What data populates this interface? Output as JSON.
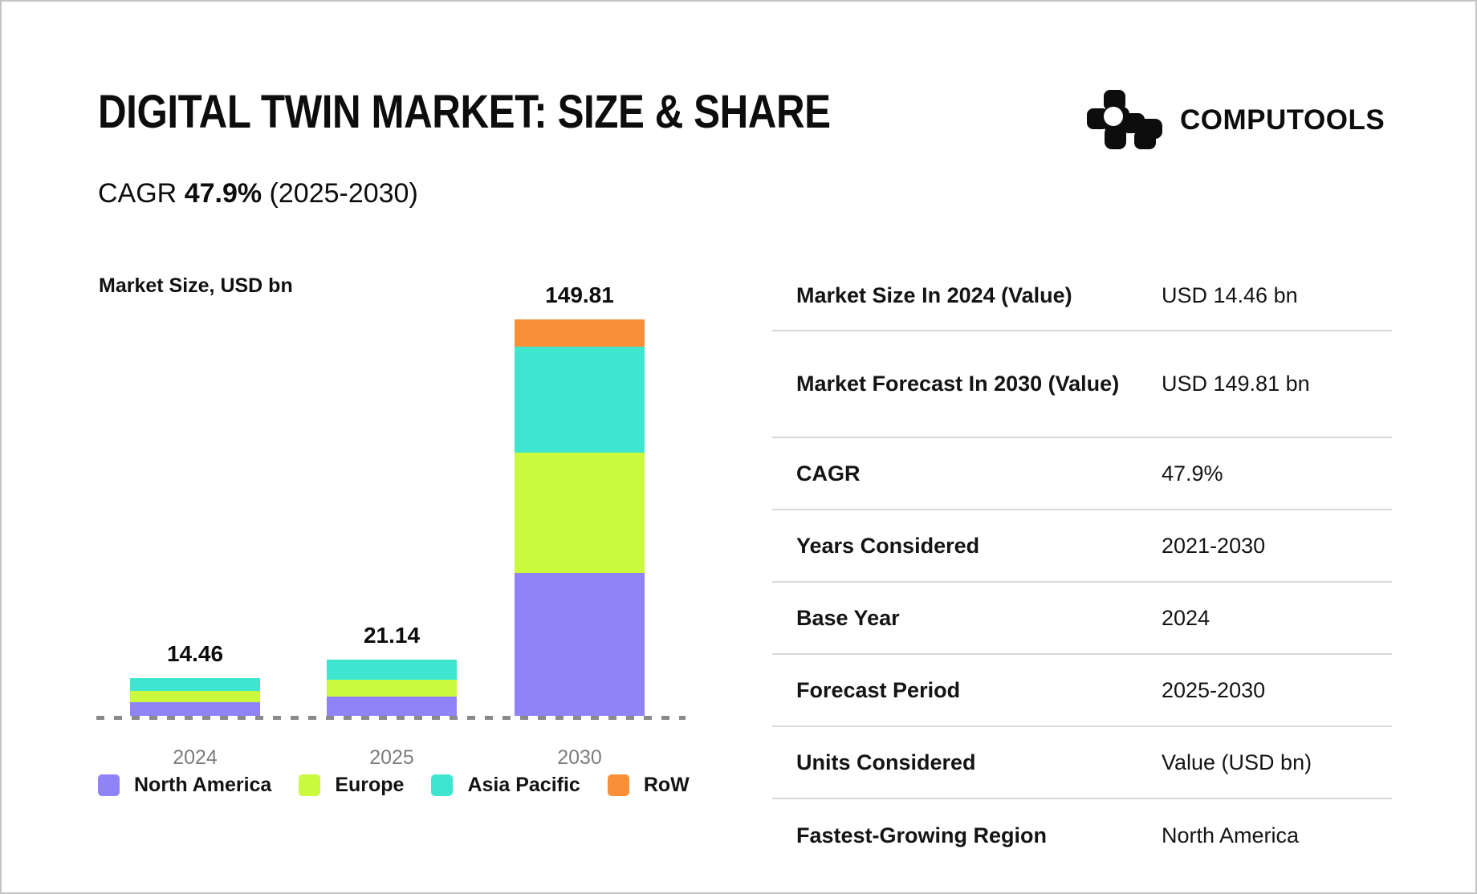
{
  "header": {
    "title": "DIGITAL TWIN MARKET: SIZE & SHARE",
    "cagr_prefix": "CAGR",
    "cagr_value": "47.9%",
    "cagr_period": "(2025-2030)"
  },
  "logo": {
    "text": "COMPUTOOLS"
  },
  "chart_data": {
    "type": "bar",
    "stacked": true,
    "title": "Market Size, USD bn",
    "categories": [
      "2024",
      "2025",
      "2030"
    ],
    "totals": [
      14.46,
      21.14,
      149.81
    ],
    "total_labels": [
      "14.46",
      "21.14",
      "149.81"
    ],
    "series": [
      {
        "name": "North America",
        "color": "#8F83F7",
        "values": [
          5.3,
          7.2,
          54.0
        ]
      },
      {
        "name": "Europe",
        "color": "#CBF93E",
        "values": [
          4.3,
          6.5,
          45.5
        ]
      },
      {
        "name": "Asia Pacific",
        "color": "#3EE6CF",
        "values": [
          4.86,
          7.44,
          39.9
        ]
      },
      {
        "name": "RoW",
        "color": "#F99038",
        "values": [
          0.0,
          0.0,
          10.41
        ]
      }
    ],
    "ylabel": "Market Size, USD bn",
    "xlabel": "",
    "legend_position": "bottom",
    "baseline": {
      "style": "dashed",
      "color": "#8a8a8a"
    },
    "axis_label_color": "#7d7d7d",
    "notes": "Stacked totals labeled above bars; RoW segment not visible for 2024 and 2025; segment values estimated from pixel heights."
  },
  "table": {
    "rows": [
      {
        "label": "Market Size In 2024 (Value)",
        "value": "USD 14.46 bn"
      },
      {
        "label": "Market Forecast In 2030 (Value)",
        "value": "USD 149.81 bn"
      },
      {
        "label": "CAGR",
        "value": "47.9%"
      },
      {
        "label": "Years Considered",
        "value": "2021-2030"
      },
      {
        "label": "Base Year",
        "value": "2024"
      },
      {
        "label": "Forecast Period",
        "value": "2025-2030"
      },
      {
        "label": "Units Considered",
        "value": "Value (USD bn)"
      },
      {
        "label": "Fastest-Growing Region",
        "value": "North America"
      }
    ]
  }
}
